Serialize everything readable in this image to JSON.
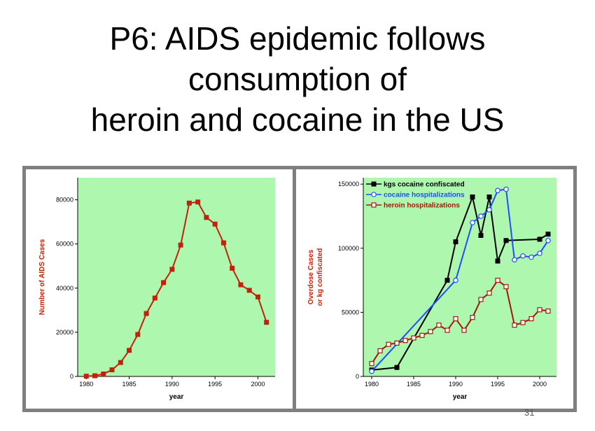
{
  "title": {
    "line1": "P6: AIDS epidemic follows",
    "line2": "consumption of",
    "line3": "heroin and cocaine in the US"
  },
  "page_number": "31",
  "colors": {
    "plot_bg": "#aef7ae",
    "aids": "#c0230b",
    "kgs": "#000000",
    "cocaine": "#1f4fff",
    "heroin": "#a01a0a",
    "frame": "#7f7f7f"
  },
  "chart_data": [
    {
      "type": "line",
      "xlabel": "year",
      "ylabel": "Number of AIDS Cases",
      "xlim": [
        1979,
        2002
      ],
      "ylim": [
        0,
        90000
      ],
      "xticks": [
        "1980",
        "1985",
        "1990",
        "1995",
        "2000"
      ],
      "yticks": [
        "0",
        "20000",
        "40000",
        "60000",
        "80000"
      ],
      "grid": false,
      "series": [
        {
          "marker": "square-filled",
          "color": "#c0230b",
          "x": [
            1980,
            1981,
            1982,
            1983,
            1984,
            1985,
            1986,
            1987,
            1988,
            1989,
            1990,
            1991,
            1992,
            1993,
            1994,
            1995,
            1996,
            1997,
            1998,
            1999,
            2000,
            2001
          ],
          "y": [
            100,
            300,
            1100,
            3000,
            6300,
            11800,
            19000,
            28500,
            35500,
            42500,
            48500,
            59500,
            78500,
            79000,
            72000,
            69000,
            60500,
            49000,
            41500,
            39000,
            36000,
            24500
          ]
        }
      ]
    },
    {
      "type": "line",
      "xlabel": "year",
      "ylabel": [
        "Overdose Cases",
        "or kg confiscated"
      ],
      "xlim": [
        1979,
        2002
      ],
      "ylim": [
        0,
        155000
      ],
      "xticks": [
        "1980",
        "1985",
        "1990",
        "1995",
        "2000"
      ],
      "yticks": [
        "0",
        "50000",
        "100000",
        "150000"
      ],
      "grid": false,
      "legend": "top-left",
      "series": [
        {
          "name": "kgs cocaine confiscated",
          "marker": "square-filled",
          "color": "#000000",
          "x": [
            1980,
            1983,
            1989,
            1990,
            1992,
            1993,
            1994,
            1995,
            1996,
            2000,
            2001
          ],
          "y": [
            5000,
            7000,
            75000,
            105000,
            140000,
            110000,
            140000,
            90000,
            106000,
            107000,
            111000
          ]
        },
        {
          "name": "cocaine hospitalizations",
          "marker": "circle-open",
          "color": "#1f4fff",
          "x": [
            1980,
            1990,
            1992,
            1993,
            1994,
            1995,
            1996,
            1997,
            1998,
            1999,
            2000,
            2001
          ],
          "y": [
            4000,
            75000,
            120000,
            125000,
            130000,
            145000,
            146000,
            91000,
            94000,
            93000,
            96000,
            106000
          ]
        },
        {
          "name": "heroin hospitalizations",
          "marker": "square-open",
          "color": "#a01a0a",
          "x": [
            1980,
            1981,
            1982,
            1983,
            1984,
            1985,
            1986,
            1987,
            1988,
            1989,
            1990,
            1991,
            1992,
            1993,
            1994,
            1995,
            1996,
            1997,
            1998,
            1999,
            2000,
            2001
          ],
          "y": [
            10000,
            20000,
            25000,
            26000,
            28000,
            30000,
            32000,
            35000,
            40000,
            36000,
            45000,
            36000,
            46000,
            60000,
            65000,
            75000,
            70000,
            40000,
            42000,
            45000,
            52000,
            51000
          ]
        }
      ]
    }
  ]
}
